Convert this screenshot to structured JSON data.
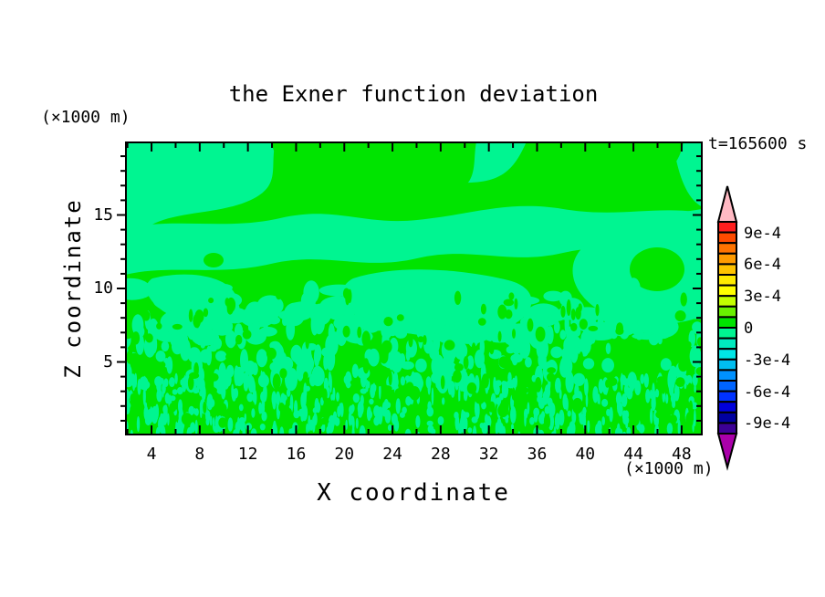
{
  "figure": {
    "title": "the Exner function deviation",
    "time_label": "t=165600 s",
    "x_axis": {
      "label": "X coordinate",
      "unit": "(×1000 m)",
      "range": [
        1.8,
        49.75
      ],
      "major_ticks": [
        4,
        8,
        12,
        16,
        20,
        24,
        28,
        32,
        36,
        40,
        44,
        48
      ],
      "minor_ticks": [
        2,
        6,
        10,
        14,
        18,
        22,
        26,
        30,
        34,
        38,
        42,
        46
      ]
    },
    "y_axis": {
      "label": "Z coordinate",
      "unit": "(×1000 m)",
      "range": [
        0,
        20
      ],
      "major_ticks": [
        5,
        10,
        15
      ],
      "minor_ticks": [
        1,
        2,
        3,
        4,
        6,
        7,
        8,
        9,
        11,
        12,
        13,
        14,
        16,
        17,
        18,
        19
      ]
    },
    "colorbar": {
      "tick_labels": [
        "9e-4",
        "6e-4",
        "3e-4",
        "0",
        "-3e-4",
        "-6e-4",
        "-9e-4"
      ]
    }
  },
  "palette": {
    "background": "#ffffff",
    "axis": "#000000",
    "band_positive_green": "#00e400",
    "band_negative_spring": "#00f591",
    "cbar_cells_top_to_bottom": [
      "#ff1e1e",
      "#ff4b00",
      "#ff7300",
      "#ff9b00",
      "#ffc300",
      "#ffeb00",
      "#ffff00",
      "#c3ff00",
      "#69f000",
      "#00e400",
      "#00f591",
      "#00ebbe",
      "#00e6e6",
      "#00bef0",
      "#0091ff",
      "#0064ff",
      "#0032ff",
      "#0000dc",
      "#0000a0",
      "#3c0096"
    ],
    "over_range_arrow": "#ffb9c3",
    "under_range_arrow": "#aa00aa"
  },
  "chart_data": {
    "type": "heatmap",
    "subtype": "filled-contour",
    "title": "the Exner function deviation",
    "xlabel": "X coordinate (×1000 m)",
    "ylabel": "Z coordinate (×1000 m)",
    "time_annotation": "t=165600 s",
    "xlim": [
      2,
      50
    ],
    "ylim": [
      0,
      20
    ],
    "x_ticks": [
      4,
      8,
      12,
      16,
      20,
      24,
      28,
      32,
      36,
      40,
      44,
      48
    ],
    "y_ticks": [
      5,
      10,
      15
    ],
    "grid": false,
    "legend_position": "right-colorbar",
    "contour_interval": 0.0001,
    "colorbar_levels_labeled": [
      0.0009,
      0.0006,
      0.0003,
      0,
      -0.0003,
      -0.0006,
      -0.0009
    ],
    "colorbar_full_range": [
      -0.001,
      0.001
    ],
    "value_bands_visible": [
      {
        "range": [
          0,
          0.0001
        ],
        "color_name": "green"
      },
      {
        "range": [
          -0.0001,
          0
        ],
        "color_name": "spring-green"
      }
    ],
    "field_description": "Deviation field everywhere within ±1e-4: smooth large-scale slightly-negative (spring green) patches dominate the upper half (Z ≈ 9–20), slightly-positive (green) blobs intrude from the top and dominate mid-levels; below Z ≈ 8 the field becomes fine-grained vertical-streak speckle mixing both bands down to the surface."
  }
}
